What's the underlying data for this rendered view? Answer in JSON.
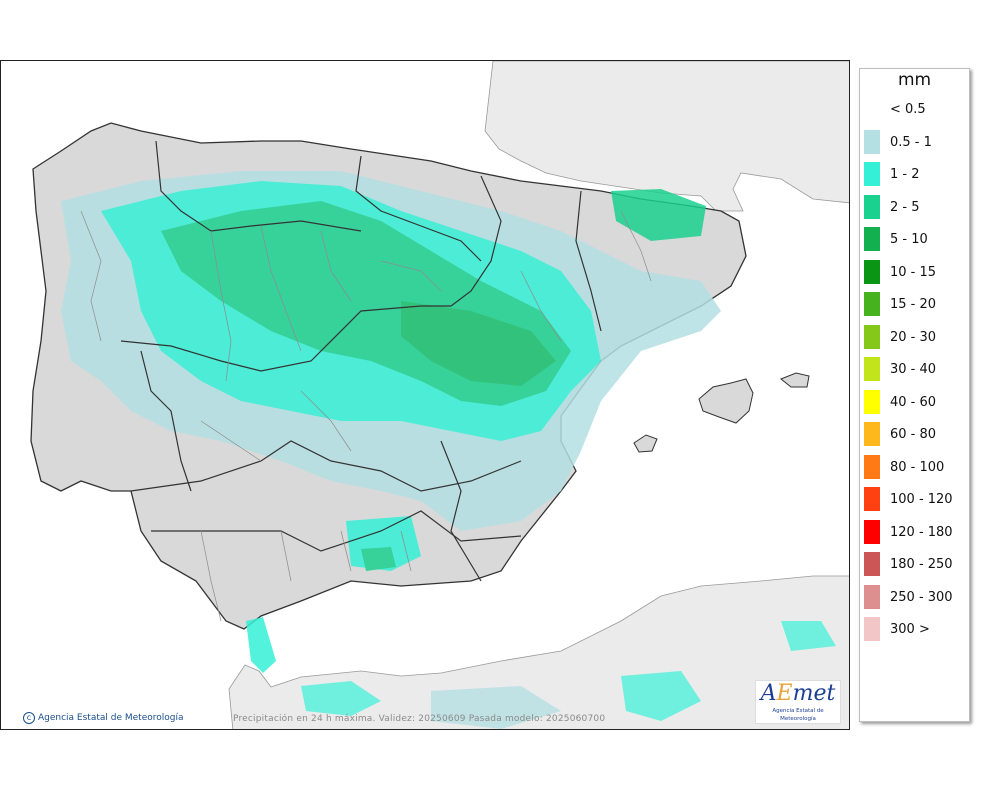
{
  "map": {
    "title": "Precipitación en 24 h máxima",
    "caption": "Precipitación en 24 h máxima. Validez: 20250609 Pasada modelo: 2025060700",
    "copyright": "Agencia Estatal de Meteorología",
    "logo_text": "AEmet",
    "logo_subtitle": "Agencia Estatal de Meteorología",
    "colors": {
      "sea": "#ffffff",
      "foreign_land": "#ebebeb",
      "iberia_land": "#d9d9d9",
      "border": "#333333",
      "province_border": "#8c8c8c"
    }
  },
  "legend": {
    "unit": "mm",
    "items": [
      {
        "label": "< 0.5",
        "color": ""
      },
      {
        "label": "0.5 - 1",
        "color": "#b4dfe3"
      },
      {
        "label": "1 - 2",
        "color": "#33f0d6"
      },
      {
        "label": "2 - 5",
        "color": "#1ad18f"
      },
      {
        "label": "5 - 10",
        "color": "#12b04e"
      },
      {
        "label": "10 - 15",
        "color": "#0a9614"
      },
      {
        "label": "15 - 20",
        "color": "#46b31e"
      },
      {
        "label": "20 - 30",
        "color": "#85c81a"
      },
      {
        "label": "30 - 40",
        "color": "#c2e41b"
      },
      {
        "label": "40 - 60",
        "color": "#ffff00"
      },
      {
        "label": "60 - 80",
        "color": "#ffb81c"
      },
      {
        "label": "80 - 100",
        "color": "#ff7a15"
      },
      {
        "label": "100 - 120",
        "color": "#ff4010"
      },
      {
        "label": "120 - 180",
        "color": "#ff0000"
      },
      {
        "label": "180 - 250",
        "color": "#cc5555"
      },
      {
        "label": "250 - 300",
        "color": "#dd8f8f"
      },
      {
        "label": "300 >",
        "color": "#f2c6c6"
      }
    ]
  }
}
